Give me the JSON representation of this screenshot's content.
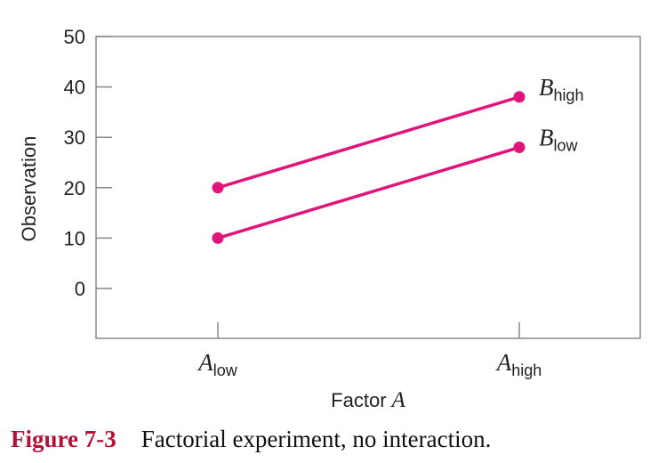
{
  "chart_data": {
    "type": "line",
    "categories": [
      {
        "base": "A",
        "sub": "low"
      },
      {
        "base": "A",
        "sub": "high"
      }
    ],
    "series": [
      {
        "name": {
          "base": "B",
          "sub": "low"
        },
        "values": [
          10,
          28
        ]
      },
      {
        "name": {
          "base": "B",
          "sub": "high"
        },
        "values": [
          20,
          38
        ]
      }
    ],
    "ylabel": "Observation",
    "xlabel": {
      "text": "Factor",
      "var": "A"
    },
    "ylim": [
      -10,
      50
    ],
    "yticks": [
      0,
      10,
      20,
      30,
      40,
      50
    ],
    "grid": false,
    "color": "#e0147a"
  },
  "caption": {
    "label": "Figure 7-3",
    "text": "Factorial experiment, no interaction."
  }
}
